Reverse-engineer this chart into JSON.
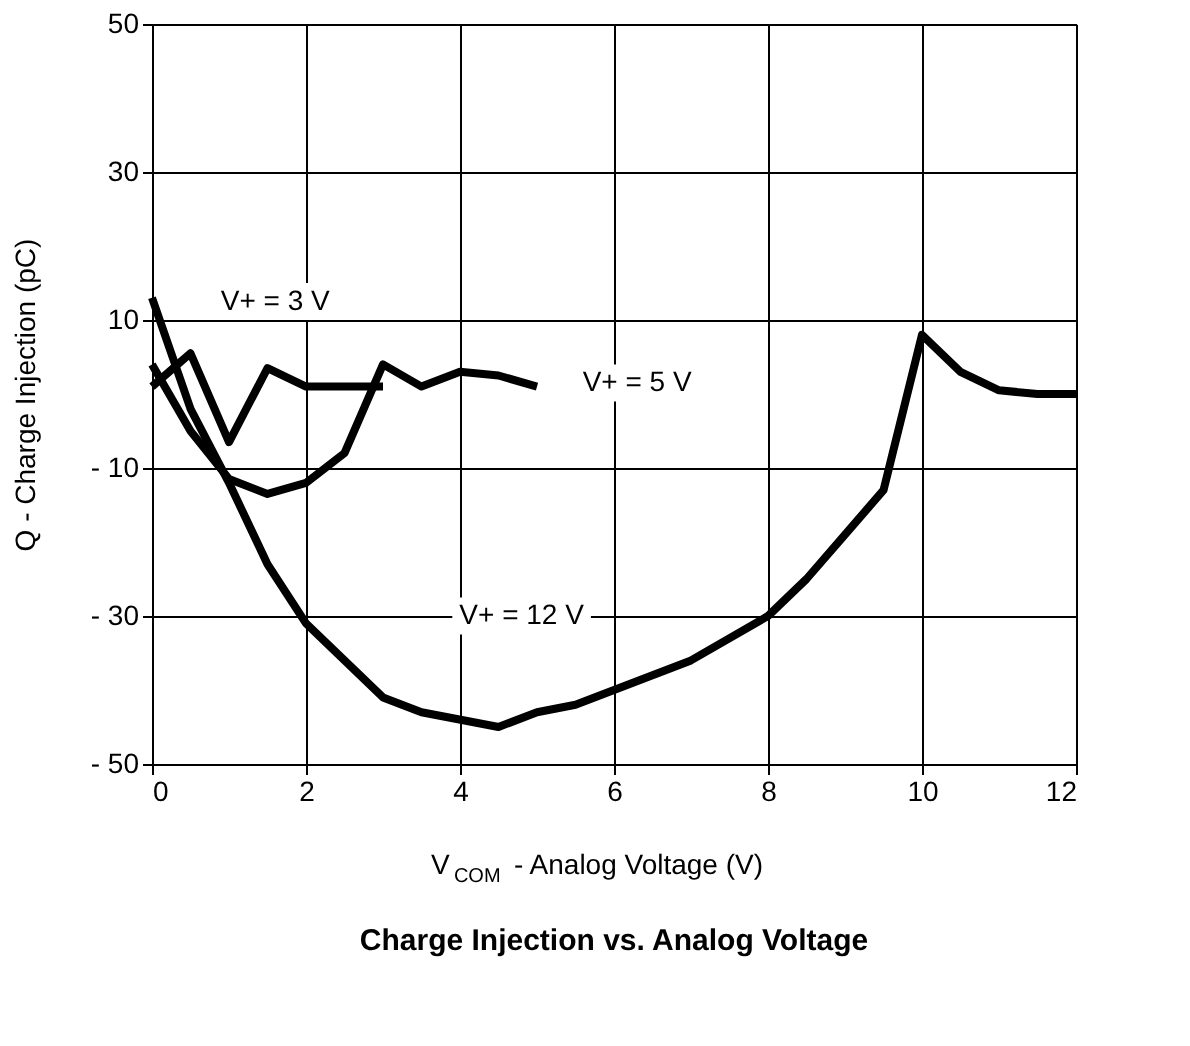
{
  "chart_data": {
    "type": "line",
    "title": "Charge Injection vs. Analog Voltage",
    "xlabel": "V$_{COM}$ -  Analog Voltage (V)",
    "ylabel": "Q  - Charge Injection (pC)",
    "xlim": [
      0,
      12
    ],
    "xticks": [
      0,
      2,
      4,
      6,
      8,
      10,
      12
    ],
    "ylim": [
      -50,
      50
    ],
    "yticks": [
      50,
      30,
      10,
      {
        "value": -10,
        "label": "- 10"
      },
      {
        "value": -30,
        "label": "- 30"
      },
      {
        "value": -50,
        "label": "- 50"
      }
    ],
    "grid": true,
    "legend": false,
    "marker": "none",
    "line_style": "solid",
    "series": [
      {
        "name": "V+ = 3 V",
        "color": "#000000",
        "x": [
          0,
          0.5,
          1,
          1.5,
          2,
          2.5,
          3
        ],
        "values": [
          1,
          5.5,
          -6.5,
          3.5,
          1,
          1,
          1
        ]
      },
      {
        "name": "V+ = 5 V",
        "color": "#000000",
        "x": [
          0,
          0.5,
          1,
          1.5,
          2,
          2.5,
          3,
          3.5,
          4,
          4.5,
          5
        ],
        "values": [
          4,
          -5,
          -11.5,
          -13.5,
          -12,
          -8,
          4,
          1,
          3,
          2.5,
          1
        ]
      },
      {
        "name": "V+ = 12 V",
        "color": "#000000",
        "x": [
          0,
          0.5,
          1,
          1.5,
          2,
          3,
          3.5,
          4.5,
          5,
          5.5,
          6,
          7,
          8,
          8.5,
          9,
          9.5,
          10,
          10.5,
          11,
          11.5,
          12
        ],
        "values": [
          13,
          -2,
          -12,
          -23,
          -31,
          -41,
          -43,
          -45,
          -43,
          -42,
          -40,
          -36,
          -30,
          -25,
          -19,
          -13,
          8,
          3,
          0.5,
          0,
          0
        ]
      }
    ]
  }
}
